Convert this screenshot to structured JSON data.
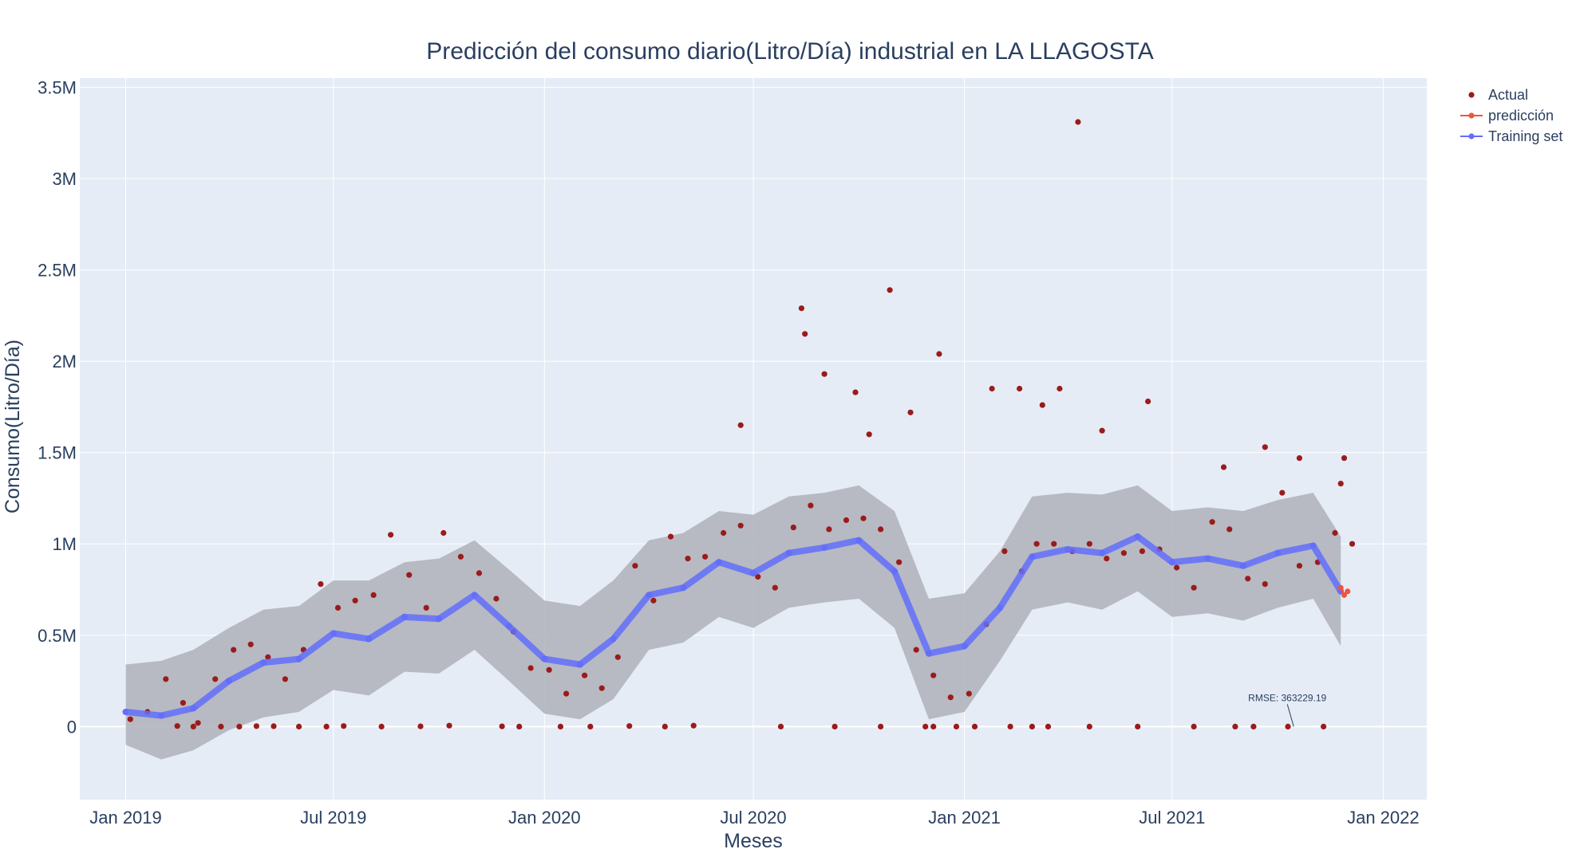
{
  "chart_data": {
    "type": "scatter",
    "title": "Predicción del consumo diario(Litro/Día) industrial en LA LLAGOSTA",
    "xlabel": "Meses",
    "ylabel": "Consumo(Litro/Día)",
    "x_range": [
      "2018-11-22",
      "2022-02-08"
    ],
    "ylim": [
      -400000,
      3550000
    ],
    "x_ticks": [
      {
        "date": "2019-01-01",
        "label": "Jan 2019"
      },
      {
        "date": "2019-07-01",
        "label": "Jul 2019"
      },
      {
        "date": "2020-01-01",
        "label": "Jan 2020"
      },
      {
        "date": "2020-07-01",
        "label": "Jul 2020"
      },
      {
        "date": "2021-01-01",
        "label": "Jan 2021"
      },
      {
        "date": "2021-07-01",
        "label": "Jul 2021"
      },
      {
        "date": "2022-01-01",
        "label": "Jan 2022"
      }
    ],
    "y_ticks": [
      {
        "value": 0,
        "label": "0"
      },
      {
        "value": 500000,
        "label": "0.5M"
      },
      {
        "value": 1000000,
        "label": "1M"
      },
      {
        "value": 1500000,
        "label": "1.5M"
      },
      {
        "value": 2000000,
        "label": "2M"
      },
      {
        "value": 2500000,
        "label": "2.5M"
      },
      {
        "value": 3000000,
        "label": "3M"
      },
      {
        "value": 3500000,
        "label": "3.5M"
      }
    ],
    "grid": true,
    "legend_position": "top-right",
    "series": [
      {
        "name": "Actual",
        "mode": "markers",
        "color": "#9b1b1b",
        "x": [
          "2019-01-05",
          "2019-01-20",
          "2019-02-05",
          "2019-02-20",
          "2019-03-05",
          "2019-03-20",
          "2019-04-05",
          "2019-04-20",
          "2019-05-05",
          "2019-05-20",
          "2019-06-05",
          "2019-06-20",
          "2019-07-05",
          "2019-07-20",
          "2019-08-05",
          "2019-08-20",
          "2019-09-05",
          "2019-09-20",
          "2019-10-05",
          "2019-10-20",
          "2019-11-05",
          "2019-11-20",
          "2019-12-05",
          "2019-12-20",
          "2020-01-05",
          "2020-01-20",
          "2020-02-05",
          "2020-02-20",
          "2020-03-05",
          "2020-03-20",
          "2020-04-05",
          "2020-04-20",
          "2020-05-05",
          "2020-05-20",
          "2020-06-05",
          "2020-06-20",
          "2020-07-05",
          "2020-07-20",
          "2020-08-05",
          "2020-08-20",
          "2020-09-05",
          "2020-09-20",
          "2020-10-05",
          "2020-10-20",
          "2020-11-05",
          "2020-11-20",
          "2020-12-05",
          "2020-12-20",
          "2021-01-05",
          "2021-01-20",
          "2021-02-05",
          "2021-02-20",
          "2021-03-05",
          "2021-03-20",
          "2021-04-05",
          "2021-04-20",
          "2021-05-05",
          "2021-05-20",
          "2021-06-05",
          "2021-06-20",
          "2021-07-05",
          "2021-07-20",
          "2021-08-05",
          "2021-08-20",
          "2021-09-05",
          "2021-09-20",
          "2021-10-05",
          "2021-10-20",
          "2021-11-05",
          "2021-11-20",
          "2021-12-05",
          "2019-02-15",
          "2019-04-25",
          "2019-05-10",
          "2019-07-10",
          "2019-09-15",
          "2019-10-10",
          "2019-11-25",
          "2020-03-15",
          "2020-05-10",
          "2020-06-20",
          "2020-08-12",
          "2020-08-15",
          "2020-09-01",
          "2020-09-28",
          "2020-10-10",
          "2020-10-28",
          "2020-11-15",
          "2020-12-10",
          "2021-01-25",
          "2021-02-18",
          "2021-03-10",
          "2021-03-25",
          "2021-04-10",
          "2021-05-01",
          "2021-06-10",
          "2021-08-15",
          "2021-09-20",
          "2021-10-20",
          "2021-11-28",
          "2019-03-01",
          "2019-03-25",
          "2019-04-10",
          "2019-06-01",
          "2019-06-25",
          "2019-08-12",
          "2019-12-10",
          "2020-01-15",
          "2020-02-10",
          "2020-04-15",
          "2020-07-25",
          "2020-09-10",
          "2020-10-20",
          "2020-11-28",
          "2020-12-05",
          "2020-12-25",
          "2021-01-10",
          "2021-02-10",
          "2021-03-01",
          "2021-03-15",
          "2021-04-20",
          "2021-06-01",
          "2021-07-20",
          "2021-08-25",
          "2021-09-10",
          "2021-10-10",
          "2021-11-10",
          "2021-11-25"
        ],
        "y": [
          40000,
          80000,
          260000,
          130000,
          20000,
          260000,
          420000,
          450000,
          380000,
          260000,
          420000,
          780000,
          650000,
          690000,
          720000,
          1050000,
          830000,
          650000,
          1060000,
          930000,
          840000,
          700000,
          520000,
          320000,
          310000,
          180000,
          280000,
          210000,
          380000,
          880000,
          690000,
          1040000,
          920000,
          930000,
          1060000,
          1100000,
          820000,
          760000,
          1090000,
          1210000,
          1080000,
          1130000,
          1140000,
          1080000,
          900000,
          420000,
          280000,
          160000,
          180000,
          560000,
          960000,
          850000,
          1000000,
          1000000,
          960000,
          1000000,
          920000,
          950000,
          960000,
          970000,
          870000,
          760000,
          1120000,
          1080000,
          810000,
          780000,
          1280000,
          880000,
          900000,
          1060000,
          1000000,
          3000,
          2500,
          2000,
          3000,
          900,
          5000,
          1200,
          3000,
          5000,
          1650000,
          2290000,
          2150000,
          1930000,
          1830000,
          1600000,
          2390000,
          1720000,
          2040000,
          1850000,
          1850000,
          1760000,
          1850000,
          3310000,
          1620000,
          1780000,
          1420000,
          1530000,
          1470000,
          1470000,
          0,
          0,
          0,
          0,
          0,
          0,
          0,
          0,
          0,
          0,
          0,
          0,
          0,
          0,
          0,
          0,
          0,
          0,
          0,
          0,
          0,
          0,
          0,
          0,
          0,
          0,
          0,
          1330000
        ]
      },
      {
        "name": "predicción",
        "mode": "lines+markers",
        "color": "#ef553b",
        "x": [
          "2021-11-25",
          "2021-11-28",
          "2021-12-01"
        ],
        "y": [
          760000,
          720000,
          740000
        ]
      },
      {
        "name": "Training set",
        "mode": "lines+markers",
        "color": "#636efa",
        "x": [
          "2019-01-01",
          "2019-02-01",
          "2019-03-01",
          "2019-04-01",
          "2019-05-01",
          "2019-06-01",
          "2019-07-01",
          "2019-08-01",
          "2019-09-01",
          "2019-10-01",
          "2019-11-01",
          "2019-12-01",
          "2020-01-01",
          "2020-02-01",
          "2020-03-01",
          "2020-04-01",
          "2020-05-01",
          "2020-06-01",
          "2020-07-01",
          "2020-08-01",
          "2020-09-01",
          "2020-10-01",
          "2020-11-01",
          "2020-12-01",
          "2021-01-01",
          "2021-02-01",
          "2021-03-01",
          "2021-04-01",
          "2021-05-01",
          "2021-06-01",
          "2021-07-01",
          "2021-08-01",
          "2021-09-01",
          "2021-10-01",
          "2021-11-01",
          "2021-11-25"
        ],
        "y": [
          80000,
          60000,
          100000,
          250000,
          350000,
          370000,
          510000,
          480000,
          600000,
          590000,
          720000,
          550000,
          370000,
          340000,
          480000,
          720000,
          760000,
          900000,
          840000,
          950000,
          980000,
          1020000,
          850000,
          400000,
          440000,
          650000,
          930000,
          970000,
          950000,
          1040000,
          900000,
          920000,
          880000,
          950000,
          990000,
          740000
        ]
      },
      {
        "name": "",
        "mode": "band",
        "color": "#b1b5bd",
        "x": [
          "2019-01-01",
          "2019-02-01",
          "2019-03-01",
          "2019-04-01",
          "2019-05-01",
          "2019-06-01",
          "2019-07-01",
          "2019-08-01",
          "2019-09-01",
          "2019-10-01",
          "2019-11-01",
          "2019-12-01",
          "2020-01-01",
          "2020-02-01",
          "2020-03-01",
          "2020-04-01",
          "2020-05-01",
          "2020-06-01",
          "2020-07-01",
          "2020-08-01",
          "2020-09-01",
          "2020-10-01",
          "2020-11-01",
          "2020-12-01",
          "2021-01-01",
          "2021-02-01",
          "2021-03-01",
          "2021-04-01",
          "2021-05-01",
          "2021-06-01",
          "2021-07-01",
          "2021-08-01",
          "2021-09-01",
          "2021-10-01",
          "2021-11-01",
          "2021-11-25"
        ],
        "upper": [
          340000,
          360000,
          420000,
          540000,
          640000,
          660000,
          800000,
          800000,
          900000,
          920000,
          1020000,
          860000,
          690000,
          660000,
          800000,
          1020000,
          1060000,
          1180000,
          1160000,
          1260000,
          1280000,
          1320000,
          1180000,
          700000,
          730000,
          960000,
          1260000,
          1280000,
          1270000,
          1320000,
          1180000,
          1200000,
          1180000,
          1240000,
          1280000,
          1040000
        ],
        "lower": [
          -100000,
          -180000,
          -130000,
          -20000,
          50000,
          80000,
          200000,
          170000,
          300000,
          290000,
          420000,
          250000,
          70000,
          40000,
          150000,
          420000,
          460000,
          600000,
          540000,
          650000,
          680000,
          700000,
          540000,
          40000,
          80000,
          360000,
          640000,
          680000,
          640000,
          740000,
          600000,
          620000,
          580000,
          650000,
          700000,
          440000
        ]
      }
    ],
    "annotation": {
      "text": "RMSE: 363229.19",
      "x": "2021-10-15",
      "y": 0
    }
  }
}
